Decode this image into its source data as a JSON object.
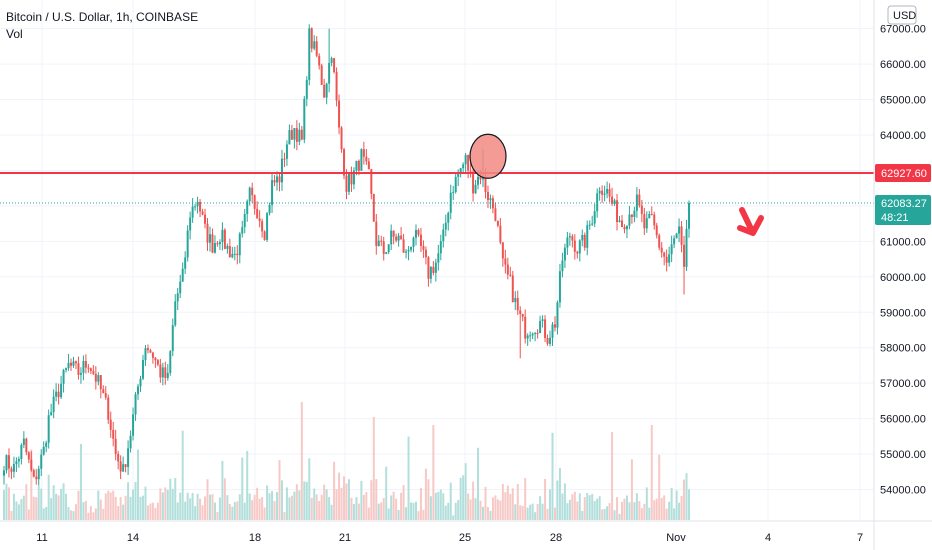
{
  "header": {
    "symbol_title": "Bitcoin / U.S. Dollar, 1h, COINBASE",
    "volume_label": "Vol",
    "currency": "USD"
  },
  "chart_data": {
    "type": "candlestick",
    "title": "Bitcoin / U.S. Dollar, 1h, COINBASE",
    "ylim": [
      53300,
      67500
    ],
    "y_ticks": [
      "54000.00",
      "55000.00",
      "56000.00",
      "57000.00",
      "58000.00",
      "59000.00",
      "60000.00",
      "61000.00",
      "62000.00",
      "63000.00",
      "64000.00",
      "65000.00",
      "66000.00",
      "67000.00"
    ],
    "x_ticks": [
      "11",
      "14",
      "18",
      "21",
      "25",
      "28",
      "Nov",
      "4",
      "7"
    ],
    "grid": true,
    "resistance_level": {
      "value": 62927.6,
      "label": "62927.60",
      "color": "#f23645"
    },
    "current_price": {
      "value": 62083.27,
      "label": "62083.27",
      "countdown": "48:21",
      "color": "#26a69a"
    },
    "colors": {
      "up": "#26a69a",
      "down": "#ef5350",
      "vol_up": "#b2dfdb",
      "vol_down": "#f7c9c6",
      "arrow": "#f23645",
      "highlight": "#f28a84"
    },
    "anchors": [
      [
        0,
        54800
      ],
      [
        4,
        54600
      ],
      [
        8,
        55300
      ],
      [
        12,
        54200
      ],
      [
        16,
        55100
      ],
      [
        18,
        56000
      ],
      [
        22,
        56800
      ],
      [
        26,
        57500
      ],
      [
        30,
        57300
      ],
      [
        34,
        57600
      ],
      [
        38,
        57000
      ],
      [
        42,
        56200
      ],
      [
        45,
        55000
      ],
      [
        48,
        54500
      ],
      [
        51,
        55600
      ],
      [
        54,
        56900
      ],
      [
        57,
        58100
      ],
      [
        60,
        57800
      ],
      [
        63,
        57300
      ],
      [
        66,
        57100
      ],
      [
        69,
        59300
      ],
      [
        72,
        60000
      ],
      [
        75,
        61800
      ],
      [
        78,
        62200
      ],
      [
        81,
        61300
      ],
      [
        84,
        60900
      ],
      [
        87,
        61200
      ],
      [
        90,
        60800
      ],
      [
        93,
        60600
      ],
      [
        96,
        61200
      ],
      [
        99,
        62300
      ],
      [
        102,
        61900
      ],
      [
        105,
        61300
      ],
      [
        108,
        62600
      ],
      [
        111,
        62800
      ],
      [
        114,
        63800
      ],
      [
        117,
        64200
      ],
      [
        120,
        63800
      ],
      [
        123,
        66800
      ],
      [
        126,
        66200
      ],
      [
        129,
        65200
      ],
      [
        132,
        66400
      ],
      [
        135,
        64100
      ],
      [
        138,
        62600
      ],
      [
        141,
        62900
      ],
      [
        144,
        63400
      ],
      [
        147,
        62800
      ],
      [
        150,
        61000
      ],
      [
        153,
        60700
      ],
      [
        156,
        61100
      ],
      [
        159,
        61100
      ],
      [
        162,
        60600
      ],
      [
        165,
        61200
      ],
      [
        168,
        60800
      ],
      [
        171,
        60100
      ],
      [
        174,
        60400
      ],
      [
        177,
        61100
      ],
      [
        180,
        62400
      ],
      [
        183,
        62900
      ],
      [
        186,
        63300
      ],
      [
        189,
        62600
      ],
      [
        192,
        62900
      ],
      [
        195,
        62300
      ],
      [
        198,
        61800
      ],
      [
        201,
        60300
      ],
      [
        204,
        59800
      ],
      [
        207,
        59000
      ],
      [
        210,
        58500
      ],
      [
        213,
        58600
      ],
      [
        216,
        58700
      ],
      [
        219,
        58300
      ],
      [
        222,
        58700
      ],
      [
        225,
        60500
      ],
      [
        228,
        61200
      ],
      [
        231,
        60800
      ],
      [
        234,
        61000
      ],
      [
        237,
        61700
      ],
      [
        240,
        62600
      ],
      [
        243,
        62400
      ],
      [
        246,
        61900
      ],
      [
        249,
        61500
      ],
      [
        252,
        61800
      ],
      [
        255,
        62100
      ],
      [
        258,
        61400
      ],
      [
        261,
        61600
      ],
      [
        264,
        60900
      ],
      [
        267,
        60400
      ],
      [
        270,
        61000
      ],
      [
        272,
        61300
      ],
      [
        274,
        60100
      ],
      [
        276,
        62100
      ]
    ],
    "wick_overrides": [
      [
        131,
        null,
        67000
      ],
      [
        208,
        57700,
        null
      ],
      [
        274,
        59500,
        null
      ],
      [
        193,
        null,
        63600
      ]
    ],
    "n_candles": 277,
    "annotations": [
      "horizontal resistance line at 62927.60",
      "red circle highlighting the top near 63600",
      "red down arrow after the last candle"
    ]
  }
}
